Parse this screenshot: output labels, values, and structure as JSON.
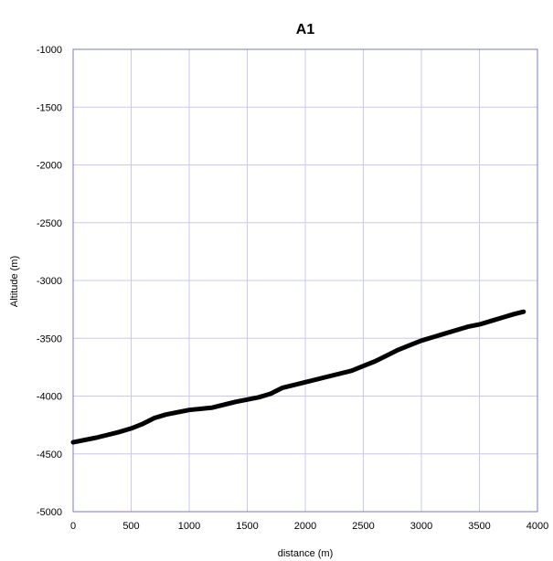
{
  "chart_data": {
    "type": "line",
    "title": "A1",
    "xlabel": "distance (m)",
    "ylabel": "Altitude (m)",
    "xlim": [
      0,
      4000
    ],
    "ylim": [
      -5000,
      -1000
    ],
    "xticks": [
      0,
      500,
      1000,
      1500,
      2000,
      2500,
      3000,
      3500,
      4000
    ],
    "yticks": [
      -1000,
      -1500,
      -2000,
      -2500,
      -3000,
      -3500,
      -4000,
      -4500,
      -5000
    ],
    "grid": true,
    "colors": {
      "line": "#000000",
      "grid": "#c8c8f0",
      "frame": "#7a7ad8"
    },
    "series": [
      {
        "x": [
          0,
          200,
          400,
          500,
          600,
          700,
          800,
          900,
          1000,
          1200,
          1400,
          1600,
          1700,
          1800,
          2000,
          2200,
          2400,
          2500,
          2600,
          2700,
          2800,
          2900,
          3000,
          3100,
          3200,
          3300,
          3400,
          3500,
          3600,
          3700,
          3800,
          3880
        ],
        "y": [
          -4400,
          -4360,
          -4310,
          -4280,
          -4240,
          -4190,
          -4160,
          -4140,
          -4120,
          -4100,
          -4050,
          -4010,
          -3980,
          -3930,
          -3880,
          -3830,
          -3780,
          -3740,
          -3700,
          -3650,
          -3600,
          -3560,
          -3520,
          -3490,
          -3460,
          -3430,
          -3400,
          -3380,
          -3350,
          -3320,
          -3290,
          -3270
        ]
      }
    ]
  }
}
